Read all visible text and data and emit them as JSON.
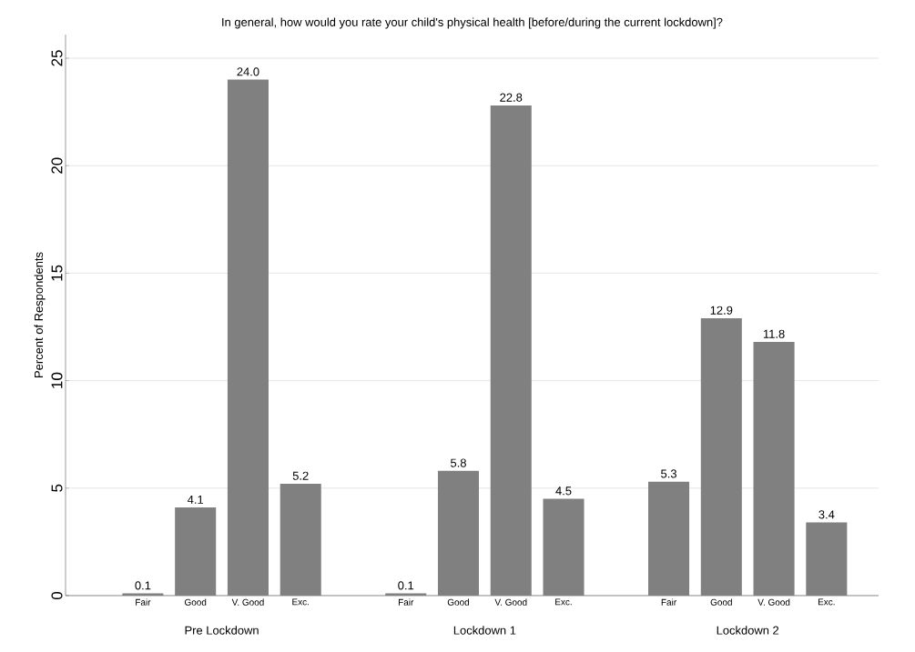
{
  "chart_data": {
    "type": "bar",
    "title": "In general, how would you rate your child's physical health [before/during the current lockdown]?",
    "ylabel": "Percent of Respondents",
    "categories": [
      "Fair",
      "Good",
      "V. Good",
      "Exc.",
      null,
      "Fair",
      "Good",
      "V. Good",
      "Exc.",
      null,
      "Fair",
      "Good",
      "V. Good",
      "Exc."
    ],
    "values": [
      0.1,
      4.1,
      24.0,
      5.2,
      null,
      0.1,
      5.8,
      22.8,
      4.5,
      null,
      5.3,
      12.9,
      11.8,
      3.4
    ],
    "value_labels": [
      "0.1",
      "4.1",
      "24.0",
      "5.2",
      null,
      "0.1",
      "5.8",
      "22.8",
      "4.5",
      null,
      "5.3",
      "12.9",
      "11.8",
      "3.4"
    ],
    "annotations": [
      "Pre Lockdown",
      "Lockdown 1",
      "Lockdown 2"
    ],
    "color": "#808080",
    "ylim": [
      0,
      26.1
    ],
    "yticks": [
      0,
      5,
      10,
      15,
      20,
      25
    ],
    "grid": "y"
  }
}
